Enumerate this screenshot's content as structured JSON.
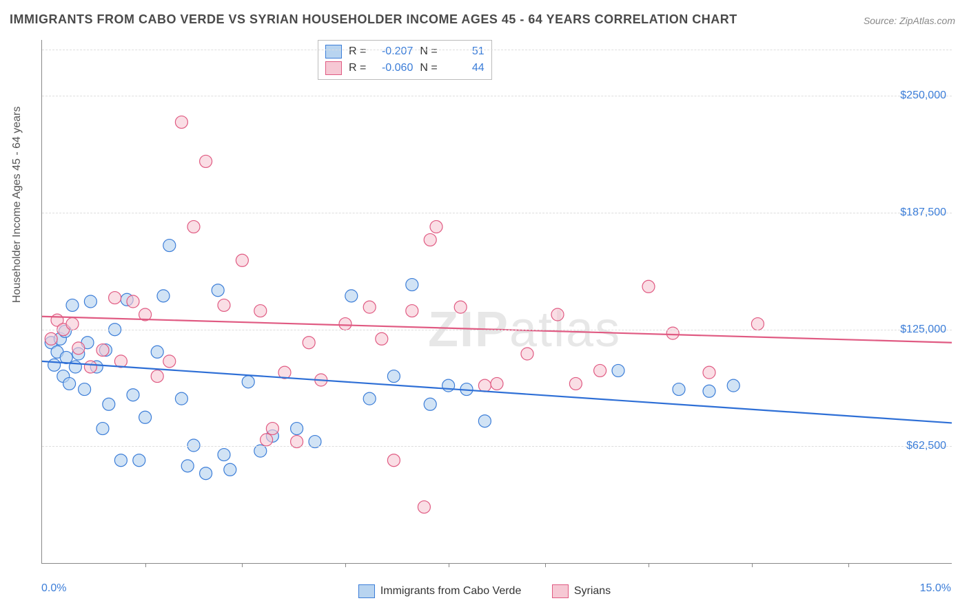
{
  "title": "IMMIGRANTS FROM CABO VERDE VS SYRIAN HOUSEHOLDER INCOME AGES 45 - 64 YEARS CORRELATION CHART",
  "source": "Source: ZipAtlas.com",
  "watermark_bold": "ZIP",
  "watermark_thin": "atlas",
  "ylabel": "Householder Income Ages 45 - 64 years",
  "chart": {
    "type": "scatter",
    "xlim": [
      0,
      15
    ],
    "ylim": [
      0,
      280000
    ],
    "xtick_positions": [
      1.7,
      3.3,
      5.0,
      6.7,
      8.3,
      10.0,
      11.7,
      13.3
    ],
    "xaxis_min_label": "0.0%",
    "xaxis_max_label": "15.0%",
    "yticks": [
      {
        "v": 62500,
        "label": "$62,500"
      },
      {
        "v": 125000,
        "label": "$125,000"
      },
      {
        "v": 187500,
        "label": "$187,500"
      },
      {
        "v": 250000,
        "label": "$250,000"
      }
    ],
    "grid_top_v": 275000,
    "background_color": "#ffffff",
    "grid_color": "#dddddd",
    "axis_color": "#888888",
    "tick_label_color": "#3b7dd8",
    "marker_radius": 9,
    "marker_stroke_width": 1.2,
    "line_width": 2.2,
    "series": [
      {
        "name": "Immigrants from Cabo Verde",
        "R": "-0.207",
        "N": "51",
        "fill": "#b8d4f0",
        "stroke": "#3b7dd8",
        "fill_opacity": 0.65,
        "line_color": "#2e6fd6",
        "trend": {
          "x1": 0,
          "y1": 108000,
          "x2": 15,
          "y2": 75000
        },
        "points": [
          [
            0.15,
            118000
          ],
          [
            0.2,
            106000
          ],
          [
            0.25,
            113000
          ],
          [
            0.3,
            120000
          ],
          [
            0.35,
            100000
          ],
          [
            0.38,
            124000
          ],
          [
            0.4,
            110000
          ],
          [
            0.45,
            96000
          ],
          [
            0.5,
            138000
          ],
          [
            0.55,
            105000
          ],
          [
            0.6,
            112000
          ],
          [
            0.7,
            93000
          ],
          [
            0.75,
            118000
          ],
          [
            0.8,
            140000
          ],
          [
            0.9,
            105000
          ],
          [
            1.0,
            72000
          ],
          [
            1.05,
            114000
          ],
          [
            1.1,
            85000
          ],
          [
            1.2,
            125000
          ],
          [
            1.3,
            55000
          ],
          [
            1.4,
            141000
          ],
          [
            1.5,
            90000
          ],
          [
            1.6,
            55000
          ],
          [
            1.7,
            78000
          ],
          [
            1.9,
            113000
          ],
          [
            2.0,
            143000
          ],
          [
            2.1,
            170000
          ],
          [
            2.3,
            88000
          ],
          [
            2.4,
            52000
          ],
          [
            2.5,
            63000
          ],
          [
            2.7,
            48000
          ],
          [
            2.9,
            146000
          ],
          [
            3.0,
            58000
          ],
          [
            3.1,
            50000
          ],
          [
            3.4,
            97000
          ],
          [
            3.6,
            60000
          ],
          [
            3.8,
            68000
          ],
          [
            4.2,
            72000
          ],
          [
            4.5,
            65000
          ],
          [
            5.1,
            143000
          ],
          [
            5.4,
            88000
          ],
          [
            5.8,
            100000
          ],
          [
            6.1,
            149000
          ],
          [
            6.4,
            85000
          ],
          [
            6.7,
            95000
          ],
          [
            7.0,
            93000
          ],
          [
            7.3,
            76000
          ],
          [
            9.5,
            103000
          ],
          [
            10.5,
            93000
          ],
          [
            11.0,
            92000
          ],
          [
            11.4,
            95000
          ]
        ]
      },
      {
        "name": "Syrians",
        "R": "-0.060",
        "N": "44",
        "fill": "#f6c8d4",
        "stroke": "#e05a82",
        "fill_opacity": 0.6,
        "line_color": "#e05a82",
        "trend": {
          "x1": 0,
          "y1": 132000,
          "x2": 15,
          "y2": 118000
        },
        "points": [
          [
            0.15,
            120000
          ],
          [
            0.25,
            130000
          ],
          [
            0.35,
            125000
          ],
          [
            0.5,
            128000
          ],
          [
            0.6,
            115000
          ],
          [
            0.8,
            105000
          ],
          [
            1.0,
            114000
          ],
          [
            1.2,
            142000
          ],
          [
            1.3,
            108000
          ],
          [
            1.5,
            140000
          ],
          [
            1.7,
            133000
          ],
          [
            1.9,
            100000
          ],
          [
            2.1,
            108000
          ],
          [
            2.3,
            236000
          ],
          [
            2.5,
            180000
          ],
          [
            2.7,
            215000
          ],
          [
            3.0,
            138000
          ],
          [
            3.3,
            162000
          ],
          [
            3.6,
            135000
          ],
          [
            3.7,
            66000
          ],
          [
            3.8,
            72000
          ],
          [
            4.0,
            102000
          ],
          [
            4.2,
            65000
          ],
          [
            4.4,
            118000
          ],
          [
            4.6,
            98000
          ],
          [
            5.0,
            128000
          ],
          [
            5.4,
            137000
          ],
          [
            5.6,
            120000
          ],
          [
            5.8,
            55000
          ],
          [
            6.1,
            135000
          ],
          [
            6.3,
            30000
          ],
          [
            6.4,
            173000
          ],
          [
            6.5,
            180000
          ],
          [
            6.9,
            137000
          ],
          [
            7.3,
            95000
          ],
          [
            7.5,
            96000
          ],
          [
            8.0,
            112000
          ],
          [
            8.5,
            133000
          ],
          [
            8.8,
            96000
          ],
          [
            9.2,
            103000
          ],
          [
            10.0,
            148000
          ],
          [
            10.4,
            123000
          ],
          [
            11.0,
            102000
          ],
          [
            11.8,
            128000
          ]
        ]
      }
    ]
  },
  "legend": {
    "R_label": "R =",
    "N_label": "N ="
  },
  "bottom_legend_items": [
    {
      "label": "Immigrants from Cabo Verde",
      "fill": "#b8d4f0",
      "stroke": "#3b7dd8"
    },
    {
      "label": "Syrians",
      "fill": "#f6c8d4",
      "stroke": "#e05a82"
    }
  ]
}
